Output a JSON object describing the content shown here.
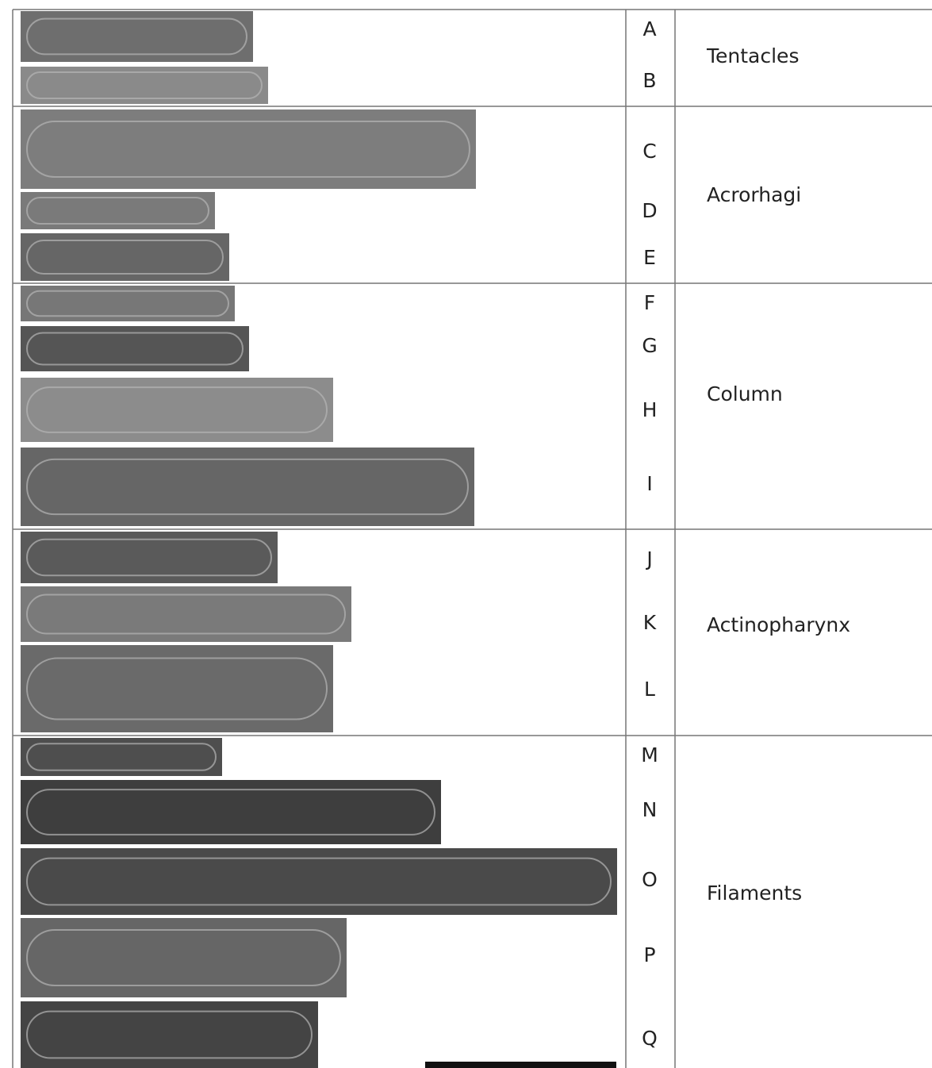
{
  "panels": [
    {
      "label": "Tentacles",
      "letters": [
        "A",
        "B"
      ]
    },
    {
      "label": "Acrorhagi",
      "letters": [
        "C",
        "D",
        "E"
      ]
    },
    {
      "label": "Column",
      "letters": [
        "F",
        "G",
        "H",
        "I"
      ]
    },
    {
      "label": "Actinopharynx",
      "letters": [
        "J",
        "K",
        "L"
      ]
    },
    {
      "label": "Filaments",
      "letters": [
        "M",
        "N",
        "O",
        "P",
        "Q"
      ]
    }
  ]
}
